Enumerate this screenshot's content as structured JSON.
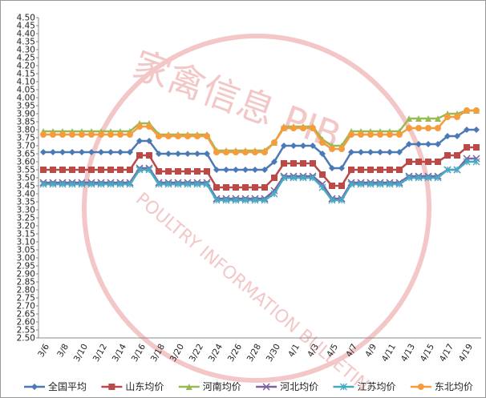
{
  "chart_data": {
    "type": "line",
    "watermark": [
      "家禽信息 PIB",
      "POULTRY INFORMATION BULLETIN"
    ],
    "categories": [
      "3/6",
      null,
      "3/8",
      null,
      "3/10",
      null,
      "3/12",
      null,
      "3/14",
      null,
      "3/16",
      null,
      "3/18",
      null,
      "3/20",
      null,
      "3/22",
      null,
      "3/24",
      null,
      "3/26",
      null,
      "3/28",
      null,
      "3/30",
      null,
      "4/1",
      null,
      "4/3",
      null,
      "4/5",
      null,
      "4/7",
      null,
      "4/9",
      null,
      "4/11",
      null,
      "4/13",
      null,
      "4/15",
      null,
      "4/17",
      null,
      "4/19",
      null
    ],
    "series": [
      {
        "name": "全国平均",
        "color": "#4a7ab5",
        "marker": "diamond",
        "values": [
          3.66,
          3.66,
          3.66,
          3.66,
          3.66,
          3.66,
          3.66,
          3.66,
          3.66,
          3.66,
          3.73,
          3.73,
          3.65,
          3.65,
          3.65,
          3.65,
          3.65,
          3.65,
          3.55,
          3.55,
          3.55,
          3.55,
          3.55,
          3.55,
          3.6,
          3.7,
          3.7,
          3.7,
          3.7,
          3.65,
          3.56,
          3.56,
          3.66,
          3.66,
          3.66,
          3.66,
          3.66,
          3.66,
          3.71,
          3.71,
          3.71,
          3.71,
          3.76,
          3.76,
          3.8,
          3.8
        ]
      },
      {
        "name": "山东均价",
        "color": "#b94a48",
        "marker": "square",
        "values": [
          3.55,
          3.55,
          3.55,
          3.55,
          3.55,
          3.55,
          3.55,
          3.55,
          3.55,
          3.55,
          3.64,
          3.64,
          3.54,
          3.54,
          3.54,
          3.54,
          3.54,
          3.54,
          3.44,
          3.44,
          3.44,
          3.44,
          3.44,
          3.44,
          3.5,
          3.59,
          3.59,
          3.59,
          3.59,
          3.52,
          3.45,
          3.45,
          3.55,
          3.55,
          3.55,
          3.55,
          3.55,
          3.55,
          3.6,
          3.6,
          3.6,
          3.6,
          3.64,
          3.64,
          3.69,
          3.69
        ]
      },
      {
        "name": "河南均价",
        "color": "#98b954",
        "marker": "triangle",
        "values": [
          3.79,
          3.79,
          3.79,
          3.79,
          3.79,
          3.79,
          3.79,
          3.79,
          3.79,
          3.79,
          3.84,
          3.84,
          3.77,
          3.77,
          3.77,
          3.77,
          3.77,
          3.77,
          3.67,
          3.67,
          3.67,
          3.67,
          3.67,
          3.67,
          3.72,
          3.82,
          3.82,
          3.82,
          3.82,
          3.74,
          3.7,
          3.7,
          3.79,
          3.79,
          3.79,
          3.79,
          3.79,
          3.79,
          3.87,
          3.87,
          3.87,
          3.87,
          3.9,
          3.9,
          3.92,
          3.92
        ]
      },
      {
        "name": "河北均价",
        "color": "#7d60a0",
        "marker": "x",
        "values": [
          3.47,
          3.47,
          3.47,
          3.47,
          3.47,
          3.47,
          3.47,
          3.47,
          3.47,
          3.47,
          3.56,
          3.56,
          3.47,
          3.47,
          3.47,
          3.47,
          3.47,
          3.47,
          3.37,
          3.37,
          3.37,
          3.37,
          3.37,
          3.37,
          3.42,
          3.51,
          3.51,
          3.51,
          3.51,
          3.46,
          3.37,
          3.37,
          3.47,
          3.47,
          3.47,
          3.47,
          3.47,
          3.47,
          3.51,
          3.51,
          3.51,
          3.51,
          3.55,
          3.55,
          3.62,
          3.62
        ]
      },
      {
        "name": "江苏均价",
        "color": "#46aac4",
        "marker": "star",
        "values": [
          3.46,
          3.46,
          3.46,
          3.46,
          3.46,
          3.46,
          3.46,
          3.46,
          3.46,
          3.46,
          3.55,
          3.55,
          3.46,
          3.46,
          3.46,
          3.46,
          3.46,
          3.46,
          3.36,
          3.36,
          3.36,
          3.36,
          3.36,
          3.36,
          3.4,
          3.5,
          3.5,
          3.5,
          3.5,
          3.44,
          3.36,
          3.36,
          3.46,
          3.46,
          3.46,
          3.46,
          3.46,
          3.46,
          3.5,
          3.5,
          3.5,
          3.5,
          3.55,
          3.55,
          3.6,
          3.6
        ]
      },
      {
        "name": "东北均价",
        "color": "#f59d3d",
        "marker": "circle",
        "values": [
          3.77,
          3.77,
          3.77,
          3.77,
          3.77,
          3.77,
          3.77,
          3.77,
          3.77,
          3.77,
          3.82,
          3.82,
          3.76,
          3.76,
          3.76,
          3.76,
          3.76,
          3.76,
          3.66,
          3.66,
          3.66,
          3.66,
          3.66,
          3.66,
          3.72,
          3.81,
          3.81,
          3.81,
          3.81,
          3.72,
          3.68,
          3.68,
          3.77,
          3.77,
          3.77,
          3.77,
          3.77,
          3.77,
          3.81,
          3.81,
          3.81,
          3.81,
          3.88,
          3.88,
          3.92,
          3.92
        ]
      }
    ],
    "ylim": [
      2.5,
      4.5
    ],
    "yticks": [
      {
        "value": 2.5,
        "label": "2.50"
      },
      {
        "value": 2.55,
        "label": "2.55"
      },
      {
        "value": 2.6,
        "label": "2.60"
      },
      {
        "value": 2.65,
        "label": "2.65"
      },
      {
        "value": 2.7,
        "label": "2.70"
      },
      {
        "value": 2.75,
        "label": "2.75"
      },
      {
        "value": 2.8,
        "label": "2.80"
      },
      {
        "value": 2.85,
        "label": "2.85"
      },
      {
        "value": 2.9,
        "label": "2.90"
      },
      {
        "value": 2.95,
        "label": "2.95"
      },
      {
        "value": 3.0,
        "label": "3.00"
      },
      {
        "value": 3.05,
        "label": "3.05"
      },
      {
        "value": 3.1,
        "label": "3.10"
      },
      {
        "value": 3.15,
        "label": "3.15"
      },
      {
        "value": 3.2,
        "label": "3.20"
      },
      {
        "value": 3.25,
        "label": "3.25"
      },
      {
        "value": 3.3,
        "label": "3.30"
      },
      {
        "value": 3.35,
        "label": "3.35"
      },
      {
        "value": 3.4,
        "label": "3.40"
      },
      {
        "value": 3.45,
        "label": "3.45"
      },
      {
        "value": 3.5,
        "label": "3.50"
      },
      {
        "value": 3.55,
        "label": "3.55"
      },
      {
        "value": 3.6,
        "label": "3.60"
      },
      {
        "value": 3.65,
        "label": "3.65"
      },
      {
        "value": 3.7,
        "label": "3.70"
      },
      {
        "value": 3.75,
        "label": "3.75"
      },
      {
        "value": 3.8,
        "label": "3.80"
      },
      {
        "value": 3.85,
        "label": "3.85"
      },
      {
        "value": 3.9,
        "label": "3.90"
      },
      {
        "value": 3.95,
        "label": "3.95"
      },
      {
        "value": 4.0,
        "label": "4.00"
      },
      {
        "value": 4.05,
        "label": "4.05"
      },
      {
        "value": 4.1,
        "label": "4.10"
      },
      {
        "value": 4.15,
        "label": "4.15"
      },
      {
        "value": 4.2,
        "label": "4.20"
      },
      {
        "value": 4.25,
        "label": "4.25"
      },
      {
        "value": 4.3,
        "label": "4.30"
      },
      {
        "value": 4.35,
        "label": "4.35"
      },
      {
        "value": 4.4,
        "label": "4.40"
      },
      {
        "value": 4.45,
        "label": "4.45"
      },
      {
        "value": 4.5,
        "label": "4.50"
      }
    ],
    "legend": "bottom",
    "grid": false
  }
}
